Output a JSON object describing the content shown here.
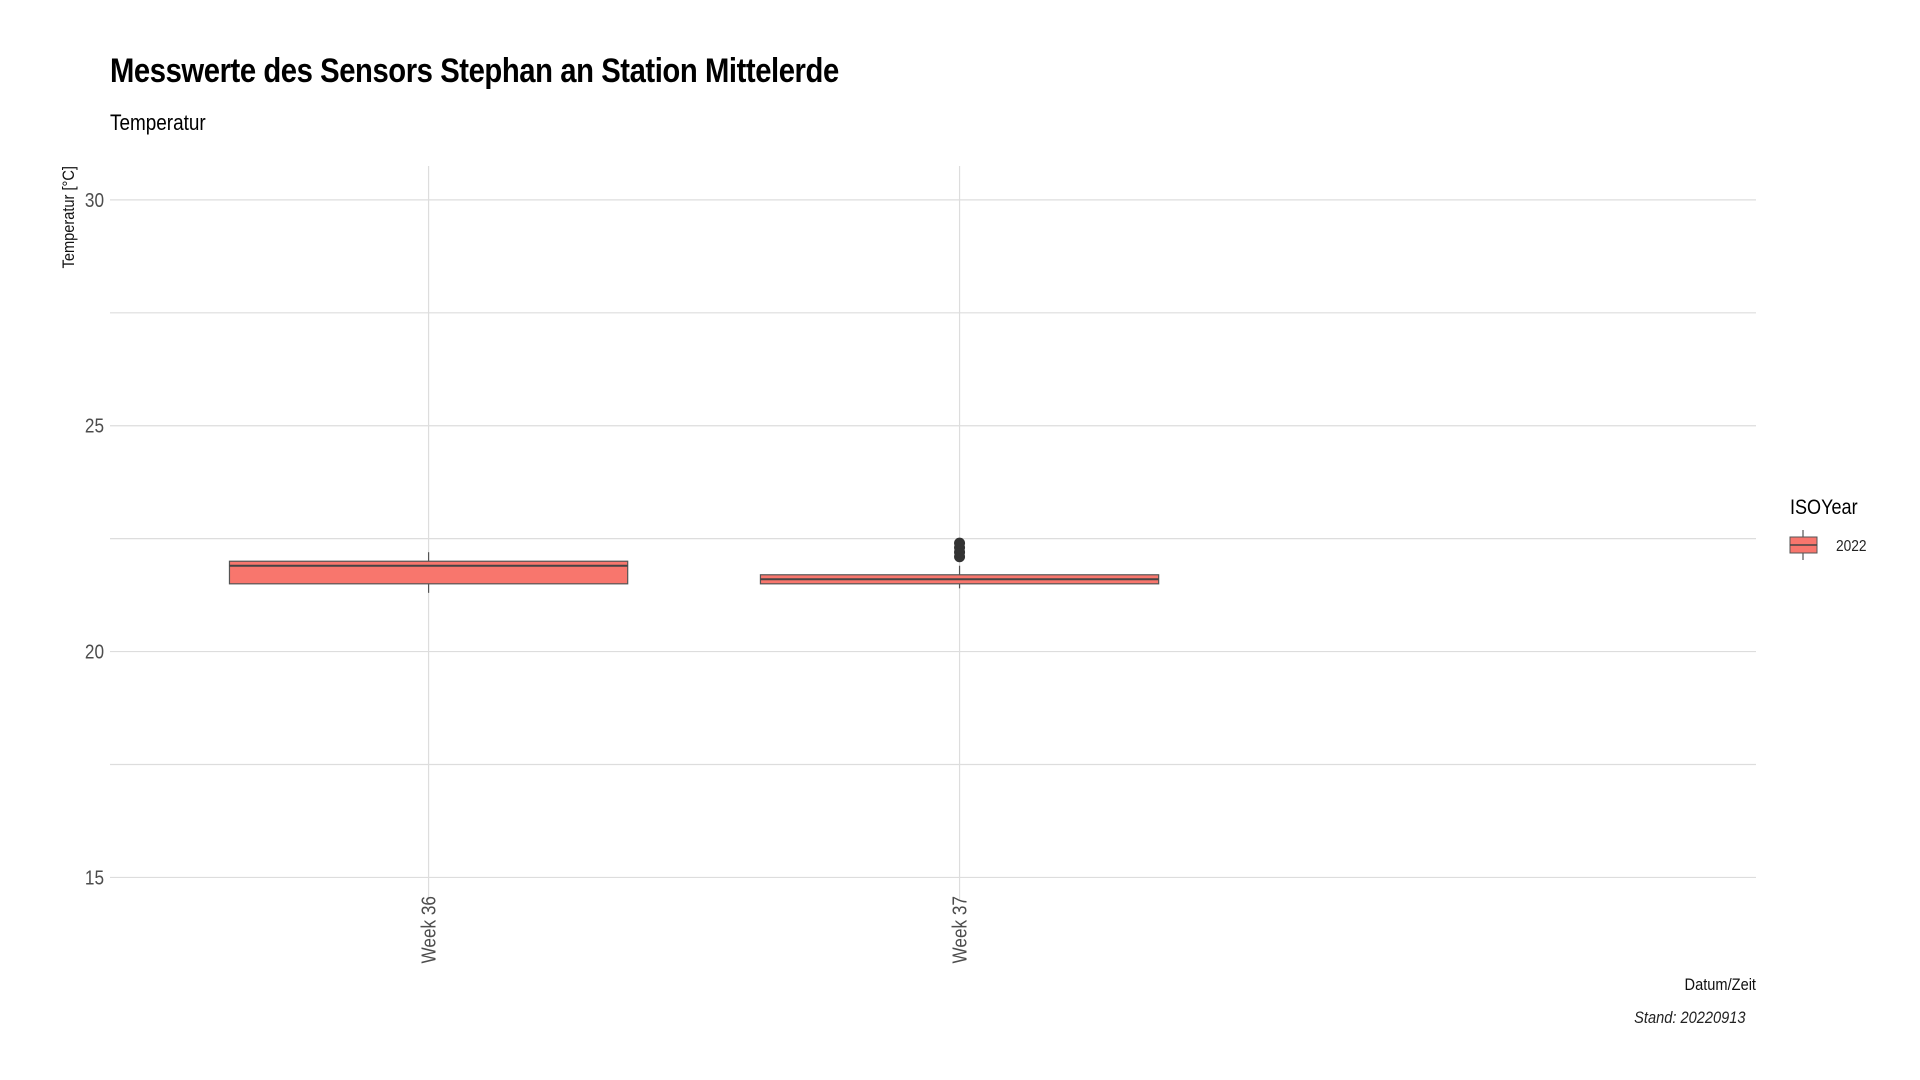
{
  "chart_data": {
    "type": "box",
    "title": "Messwerte des Sensors Stephan an Station Mittelerde",
    "subtitle": "Temperatur",
    "caption": "Stand: 20220913",
    "xlabel": "Datum/Zeit",
    "ylabel": "Temperatur [°C]",
    "ylim": [
      14.5,
      30.75
    ],
    "y_ticks": [
      15,
      20,
      25,
      30
    ],
    "grid": true,
    "legend": {
      "title": "ISOYear",
      "position": "right",
      "entries": [
        "2022"
      ]
    },
    "fill_color": "#F8766D",
    "categories": [
      "Week 36",
      "Week 37"
    ],
    "series": [
      {
        "name": "2022",
        "boxes": [
          {
            "category": "Week 36",
            "min": 21.3,
            "q1": 21.5,
            "median": 21.9,
            "q3": 22.0,
            "max": 22.2,
            "outliers": []
          },
          {
            "category": "Week 37",
            "min": 21.4,
            "q1": 21.5,
            "median": 21.6,
            "q3": 21.7,
            "max": 21.9,
            "outliers": [
              22.1,
              22.2,
              22.3,
              22.4
            ]
          }
        ]
      }
    ]
  }
}
